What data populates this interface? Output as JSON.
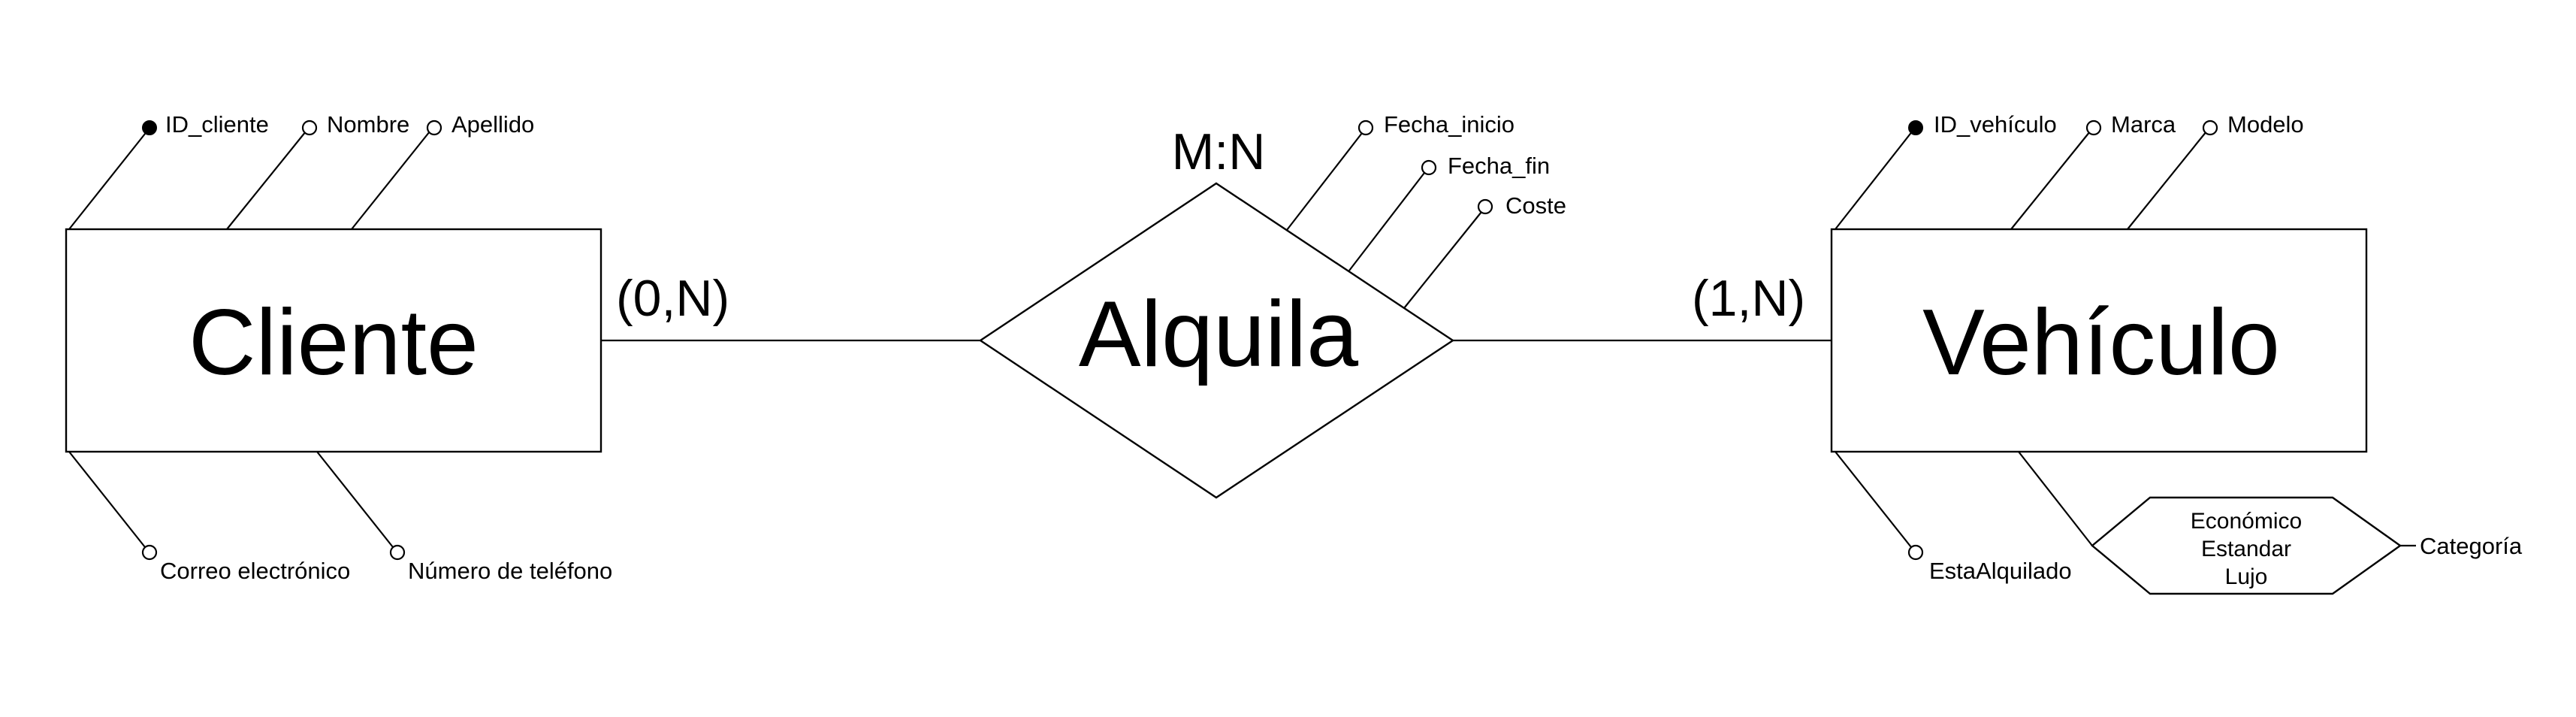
{
  "entities": {
    "cliente": "Cliente",
    "vehiculo": "Vehículo"
  },
  "relationship": {
    "name": "Alquila",
    "type": "M:N"
  },
  "cardinalities": {
    "cliente": "(0,N)",
    "vehiculo": "(1,N)"
  },
  "attributes": {
    "cliente": {
      "id": "ID_cliente",
      "nombre": "Nombre",
      "apellido": "Apellido",
      "correo": "Correo electrónico",
      "telefono": "Número de teléfono"
    },
    "alquila": {
      "fecha_inicio": "Fecha_inicio",
      "fecha_fin": "Fecha_fin",
      "coste": "Coste"
    },
    "vehiculo": {
      "id": "ID_vehículo",
      "marca": "Marca",
      "modelo": "Modelo",
      "esta_alquilado": "EstaAlquilado",
      "categoria": "Categoría"
    }
  },
  "categoria_domain": [
    "Económico",
    "Estandar",
    "Lujo"
  ]
}
